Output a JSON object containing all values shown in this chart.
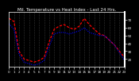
{
  "title": "Mil. Temperature vs Heat Index - Last 24 Hrs.",
  "fig_bg_color": "#000000",
  "plot_bg_color": "#000000",
  "grid_color": "#666666",
  "red_line_color": "#ff0000",
  "blue_line_color": "#0000ff",
  "x_values": [
    0,
    1,
    2,
    3,
    4,
    5,
    6,
    7,
    8,
    9,
    10,
    11,
    12,
    13,
    14,
    15,
    16,
    17,
    18,
    19,
    20,
    21,
    22,
    23
  ],
  "temp_values": [
    72,
    68,
    30,
    20,
    18,
    16,
    18,
    22,
    42,
    58,
    62,
    64,
    60,
    58,
    62,
    72,
    64,
    58,
    52,
    50,
    44,
    38,
    30,
    22
  ],
  "heat_values": [
    65,
    58,
    26,
    16,
    14,
    12,
    14,
    18,
    36,
    52,
    54,
    54,
    52,
    54,
    56,
    60,
    54,
    52,
    50,
    50,
    44,
    38,
    28,
    18
  ],
  "ylim": [
    10,
    80
  ],
  "yticks": [
    20,
    30,
    40,
    50,
    60,
    70
  ],
  "ytick_labels": [
    "20",
    "30",
    "40",
    "50",
    "60",
    "70"
  ],
  "xlim": [
    0,
    23
  ],
  "xtick_step": 1,
  "title_fontsize": 4.0,
  "tick_fontsize": 3.0,
  "line_width": 0.9,
  "spine_color": "#ffffff",
  "tick_color": "#ffffff"
}
